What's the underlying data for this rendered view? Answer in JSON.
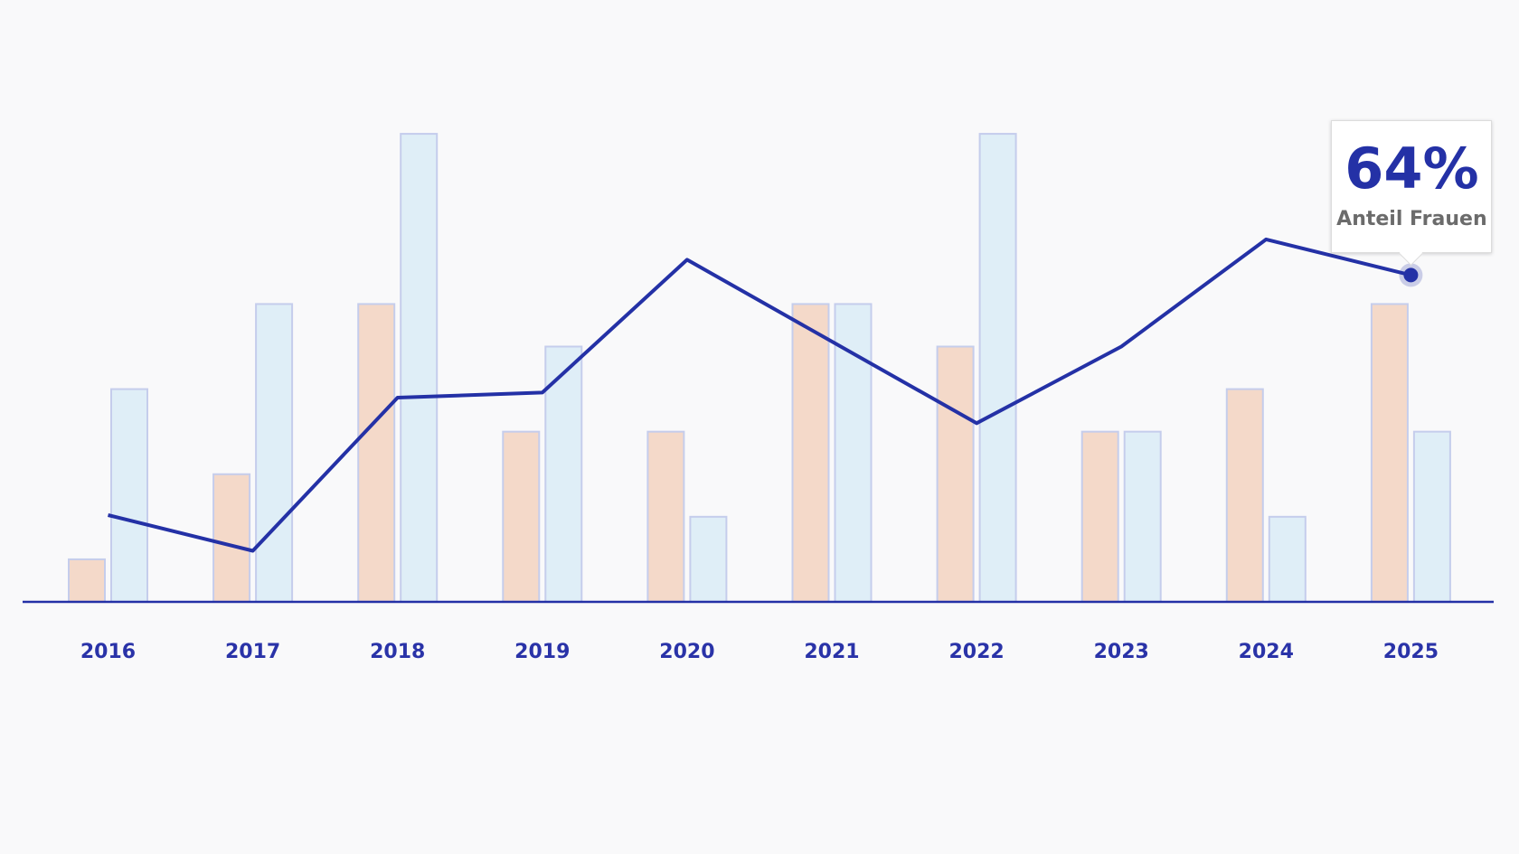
{
  "chart_data": {
    "type": "bar",
    "categories": [
      "2016",
      "2017",
      "2018",
      "2019",
      "2020",
      "2021",
      "2022",
      "2023",
      "2024",
      "2025"
    ],
    "series": [
      {
        "kind": "bar",
        "values": [
          1,
          3,
          7,
          4,
          4,
          7,
          6,
          4,
          5,
          7
        ]
      },
      {
        "kind": "bar",
        "values": [
          5,
          7,
          11,
          6,
          2,
          7,
          11,
          4,
          2,
          4
        ]
      },
      {
        "name": "Anteil Frauen",
        "kind": "line",
        "unit": "%",
        "values": [
          17,
          10,
          40,
          41,
          67,
          51,
          35,
          50,
          71,
          64
        ]
      }
    ],
    "ylim_bars": [
      0,
      12
    ],
    "ylim_line": [
      0,
      100
    ],
    "grid": false,
    "colors": {
      "bar1_fill": "#f4d9c9",
      "bar2_fill": "#dfeef7",
      "bar_stroke": "#c5cdec",
      "line": "#2431a6",
      "axis": "#2431a6",
      "text": "#2a33a8"
    },
    "tooltip": {
      "category": "2025",
      "value": "64%",
      "label": "Anteil Frauen"
    }
  }
}
